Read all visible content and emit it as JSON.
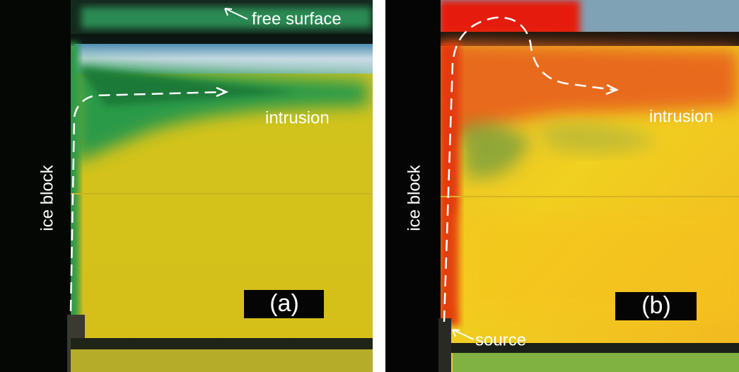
{
  "panels": [
    {
      "label": "(a)",
      "free_surface": "free surface",
      "intrusion": "intrusion",
      "ice_block": "ice block"
    },
    {
      "label": "(b)",
      "intrusion": "intrusion",
      "ice_block": "ice block",
      "source": "source"
    }
  ]
}
